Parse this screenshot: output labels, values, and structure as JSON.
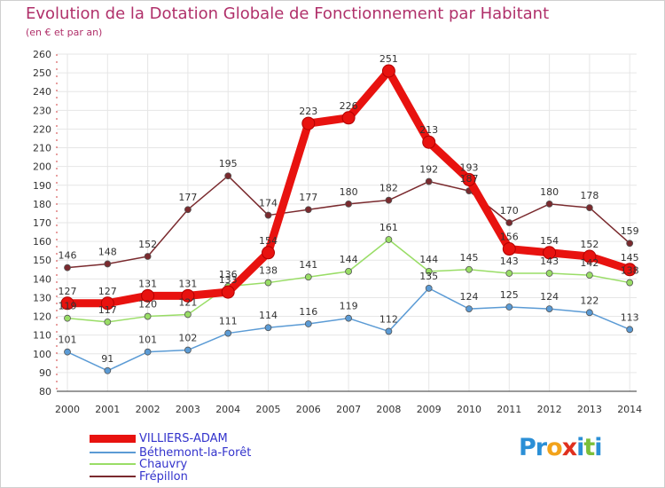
{
  "title": "Evolution de la Dotation Globale de Fonctionnement par Habitant",
  "subtitle": "(en € et par an)",
  "chart_data": {
    "type": "line",
    "title": "Evolution de la Dotation Globale de Fonctionnement par Habitant",
    "ylabel": "(en € et par an)",
    "xlabel": "",
    "ylim": [
      80,
      260
    ],
    "yticks": [
      80,
      90,
      100,
      110,
      120,
      130,
      140,
      150,
      160,
      170,
      180,
      190,
      200,
      210,
      220,
      230,
      240,
      250,
      260
    ],
    "grid": true,
    "legend": "bottom-left",
    "x": [
      "2000",
      "2001",
      "2002",
      "2003",
      "2004",
      "2005",
      "2006",
      "2007",
      "2008",
      "2009",
      "2010",
      "2011",
      "2012",
      "2013",
      "2014"
    ],
    "series": [
      {
        "name": "VILLIERS-ADAM",
        "color": "#e8120f",
        "values": [
          127,
          127,
          131,
          131,
          133,
          154,
          223,
          226,
          251,
          213,
          193,
          156,
          154,
          152,
          145
        ]
      },
      {
        "name": "Béthemont-la-Forêt",
        "color": "#5b9bd5",
        "values": [
          101,
          91,
          101,
          102,
          111,
          114,
          116,
          119,
          112,
          135,
          124,
          125,
          124,
          122,
          113
        ]
      },
      {
        "name": "Chauvry",
        "color": "#99dd66",
        "values": [
          119,
          117,
          120,
          121,
          136,
          138,
          141,
          144,
          161,
          144,
          145,
          143,
          143,
          142,
          138
        ]
      },
      {
        "name": "Frépillon",
        "color": "#7a2a2e",
        "values": [
          146,
          148,
          152,
          177,
          195,
          174,
          177,
          180,
          182,
          192,
          187,
          170,
          180,
          178,
          159
        ]
      }
    ]
  },
  "legend_items": [
    {
      "label": "VILLIERS-ADAM",
      "color": "#e8120f",
      "text_color": "#3333cc"
    },
    {
      "label": "Béthemont-la-Forêt",
      "color": "#5b9bd5",
      "text_color": "#3333cc"
    },
    {
      "label": "Chauvry",
      "color": "#99dd66",
      "text_color": "#3333cc"
    },
    {
      "label": "Frépillon",
      "color": "#7a2a2e",
      "text_color": "#3333cc"
    }
  ],
  "logo": {
    "text": "Proxiti",
    "letters": [
      {
        "ch": "P",
        "color": "#2b8fd6"
      },
      {
        "ch": "r",
        "color": "#2b8fd6"
      },
      {
        "ch": "o",
        "color": "#f2a31b"
      },
      {
        "ch": "x",
        "color": "#e0301e"
      },
      {
        "ch": "i",
        "color": "#2b8fd6"
      },
      {
        "ch": "t",
        "color": "#7bbf3a"
      },
      {
        "ch": "i",
        "color": "#2b8fd6"
      }
    ]
  }
}
